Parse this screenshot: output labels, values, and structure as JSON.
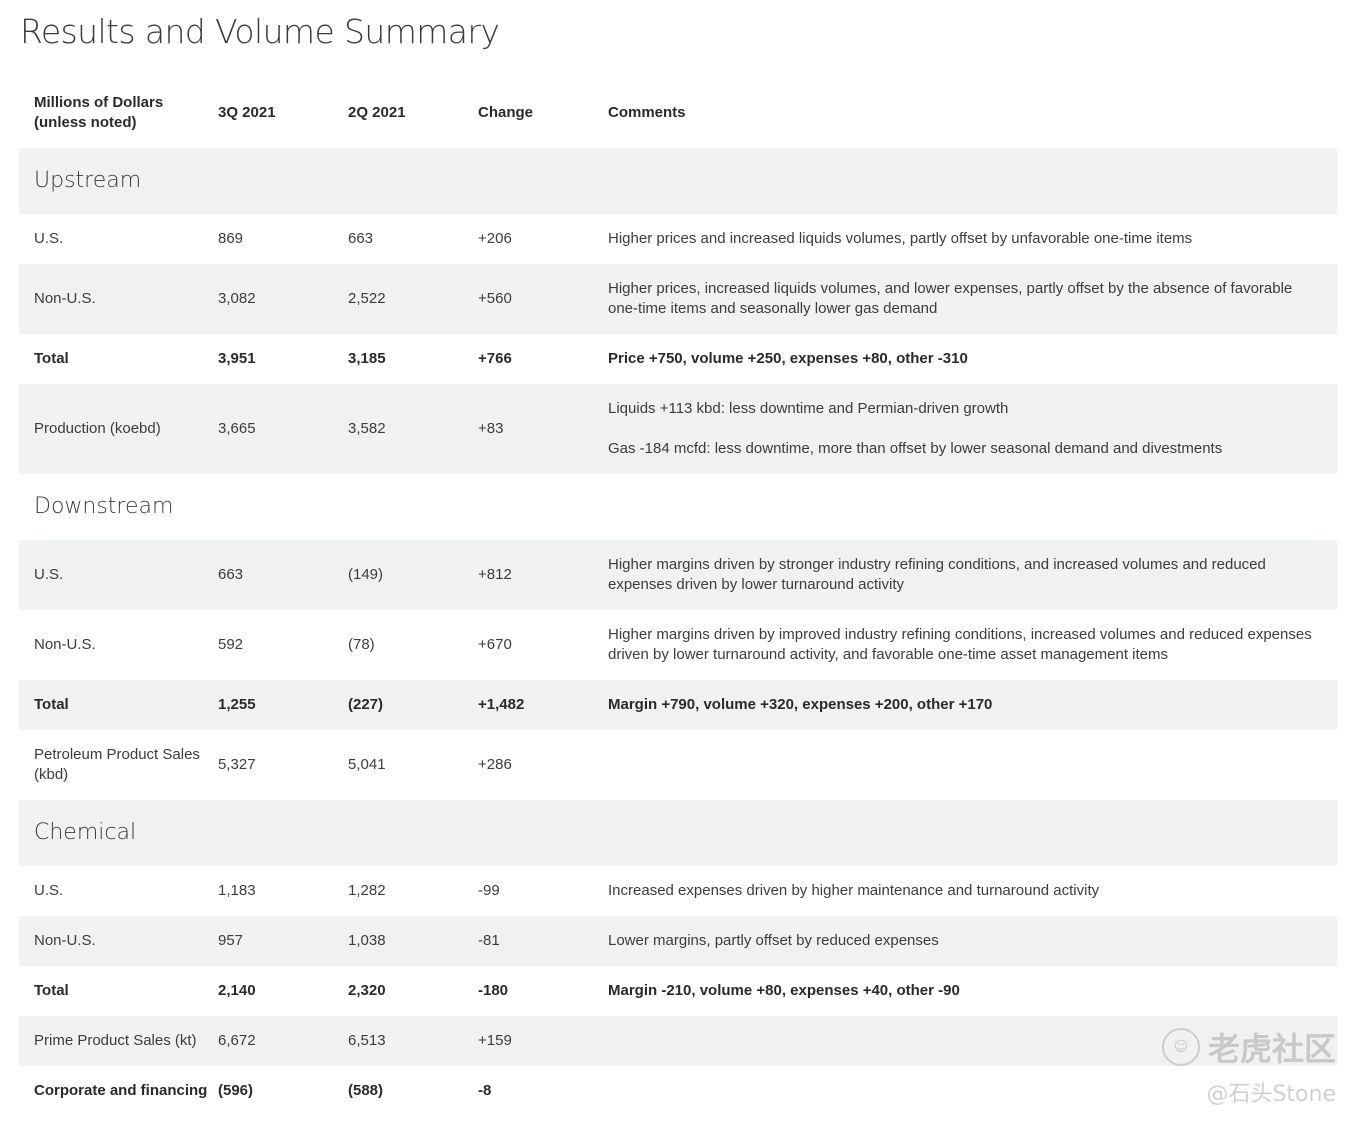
{
  "title": "Results and Volume Summary",
  "headers": {
    "label_line1": "Millions of Dollars",
    "label_line2": "(unless noted)",
    "q3": "3Q 2021",
    "q2": "2Q 2021",
    "change": "Change",
    "comments": "Comments"
  },
  "sections": [
    {
      "name": "Upstream",
      "rows": [
        {
          "label": "U.S.",
          "q3": "869",
          "q2": "663",
          "change": "+206",
          "comment": "Higher prices and increased liquids volumes, partly offset by unfavorable one-time items"
        },
        {
          "label": "Non-U.S.",
          "q3": "3,082",
          "q2": "2,522",
          "change": "+560",
          "comment": "Higher prices, increased liquids volumes, and lower expenses, partly offset by the absence of favorable one-time items and seasonally lower gas demand"
        },
        {
          "label": "Total",
          "q3": "3,951",
          "q2": "3,185",
          "change": "+766",
          "comment": "Price +750, volume +250, expenses +80, other -310"
        },
        {
          "label": "Production (koebd)",
          "q3": "3,665",
          "q2": "3,582",
          "change": "+83",
          "comment": "Liquids +113 kbd: less downtime and Permian-driven growth",
          "comment2": "Gas -184 mcfd: less downtime, more than offset by lower seasonal demand and divestments"
        }
      ]
    },
    {
      "name": "Downstream",
      "rows": [
        {
          "label": "U.S.",
          "q3": "663",
          "q2": "(149)",
          "change": "+812",
          "comment": "Higher margins driven by stronger industry refining conditions, and increased volumes and reduced expenses driven by lower turnaround activity"
        },
        {
          "label": "Non-U.S.",
          "q3": "592",
          "q2": "(78)",
          "change": "+670",
          "comment": "Higher margins driven by improved industry refining conditions, increased volumes and reduced expenses driven by lower turnaround activity, and favorable one-time asset management items"
        },
        {
          "label": "Total",
          "q3": "1,255",
          "q2": "(227)",
          "change": "+1,482",
          "comment": "Margin +790, volume +320, expenses +200, other +170"
        },
        {
          "label": "Petroleum Product Sales (kbd)",
          "q3": "5,327",
          "q2": "5,041",
          "change": "+286",
          "comment": ""
        }
      ]
    },
    {
      "name": "Chemical",
      "rows": [
        {
          "label": "U.S.",
          "q3": "1,183",
          "q2": "1,282",
          "change": "-99",
          "comment": "Increased expenses driven by higher maintenance and turnaround activity"
        },
        {
          "label": "Non-U.S.",
          "q3": "957",
          "q2": "1,038",
          "change": "-81",
          "comment": "Lower margins, partly offset by reduced expenses"
        },
        {
          "label": "Total",
          "q3": "2,140",
          "q2": "2,320",
          "change": "-180",
          "comment": "Margin -210, volume +80, expenses +40, other -90"
        },
        {
          "label": "Prime Product Sales (kt)",
          "q3": "6,672",
          "q2": "6,513",
          "change": "+159",
          "comment": ""
        }
      ]
    }
  ],
  "corporate": {
    "label": "Corporate and financing",
    "q3": "(596)",
    "q2": "(588)",
    "change": "-8"
  },
  "watermark": {
    "line1": "老虎社区",
    "line2": "@石头Stone"
  },
  "colors": {
    "shade": "#f0f1f1",
    "text": "#3c3c3c"
  }
}
